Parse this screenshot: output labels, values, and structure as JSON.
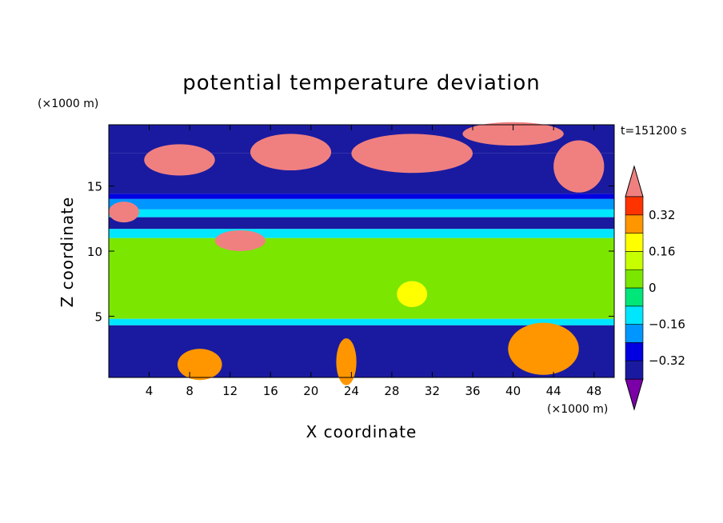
{
  "chart_data": {
    "type": "heatmap",
    "title": "potential temperature deviation",
    "xlabel": "X coordinate",
    "ylabel": "Z coordinate",
    "x_unit": "(×1000 m)",
    "y_unit": "(×1000 m)",
    "time_label": "t=151200 s",
    "xlim": [
      0,
      50
    ],
    "ylim": [
      0.3,
      19.7
    ],
    "x_ticks": [
      4,
      8,
      12,
      16,
      20,
      24,
      28,
      32,
      36,
      40,
      44,
      48
    ],
    "y_ticks": [
      5,
      10,
      15
    ],
    "colorbar": {
      "levels": [
        -0.4,
        -0.32,
        -0.24,
        -0.16,
        -0.08,
        0,
        0.08,
        0.16,
        0.24,
        0.32,
        0.4
      ],
      "tick_labels": [
        "0.32",
        "0.16",
        "0",
        "−0.16",
        "−0.32"
      ],
      "tick_values": [
        0.32,
        0.16,
        0,
        -0.16,
        -0.32
      ],
      "colors": [
        "#7b00a8",
        "#1a1aa0",
        "#0000e0",
        "#0096ff",
        "#00e6ff",
        "#00e678",
        "#7be600",
        "#c8ff00",
        "#ffff00",
        "#ff9600",
        "#ff3300",
        "#f08080"
      ],
      "extend": "both"
    },
    "layers": [
      {
        "z": [
          17.5,
          19.7
        ],
        "level": -0.4
      },
      {
        "z": [
          14.4,
          17.5
        ],
        "level": -0.4
      },
      {
        "z": [
          14.0,
          14.4
        ],
        "level": -0.3
      },
      {
        "z": [
          13.2,
          14.0
        ],
        "level": -0.2
      },
      {
        "z": [
          12.6,
          13.2
        ],
        "level": -0.1
      },
      {
        "z": [
          11.7,
          12.6
        ],
        "level": -0.35
      },
      {
        "z": [
          11.0,
          11.7
        ],
        "level": -0.1
      },
      {
        "z": [
          4.8,
          11.0
        ],
        "level": 0.05
      },
      {
        "z": [
          4.3,
          4.8
        ],
        "level": -0.1
      },
      {
        "z": [
          0.3,
          4.3
        ],
        "level": -0.4
      }
    ],
    "warm_patches": [
      {
        "x": 7,
        "z": 17.0,
        "rx": 3.5,
        "rz": 1.2,
        "level": 0.45
      },
      {
        "x": 30,
        "z": 17.5,
        "rx": 6,
        "rz": 1.5,
        "level": 0.45
      },
      {
        "x": 18,
        "z": 17.6,
        "rx": 4,
        "rz": 1.4,
        "level": 0.45
      },
      {
        "x": 40,
        "z": 19.0,
        "rx": 5,
        "rz": 0.9,
        "level": 0.45
      },
      {
        "x": 46.5,
        "z": 16.5,
        "rx": 2.5,
        "rz": 2.0,
        "level": 0.45
      },
      {
        "x": 13,
        "z": 10.8,
        "rx": 2.5,
        "rz": 0.8,
        "level": 0.45
      },
      {
        "x": 1.5,
        "z": 13.0,
        "rx": 1.5,
        "rz": 0.8,
        "level": 0.45
      },
      {
        "x": 9,
        "z": 1.3,
        "rx": 2.2,
        "rz": 1.2,
        "level": 0.3
      },
      {
        "x": 23.5,
        "z": 1.5,
        "rx": 1.0,
        "rz": 1.8,
        "level": 0.3
      },
      {
        "x": 43,
        "z": 2.5,
        "rx": 3.5,
        "rz": 2.0,
        "level": 0.3
      },
      {
        "x": 30,
        "z": 6.7,
        "rx": 1.5,
        "rz": 1.0,
        "level": 0.2
      }
    ]
  }
}
